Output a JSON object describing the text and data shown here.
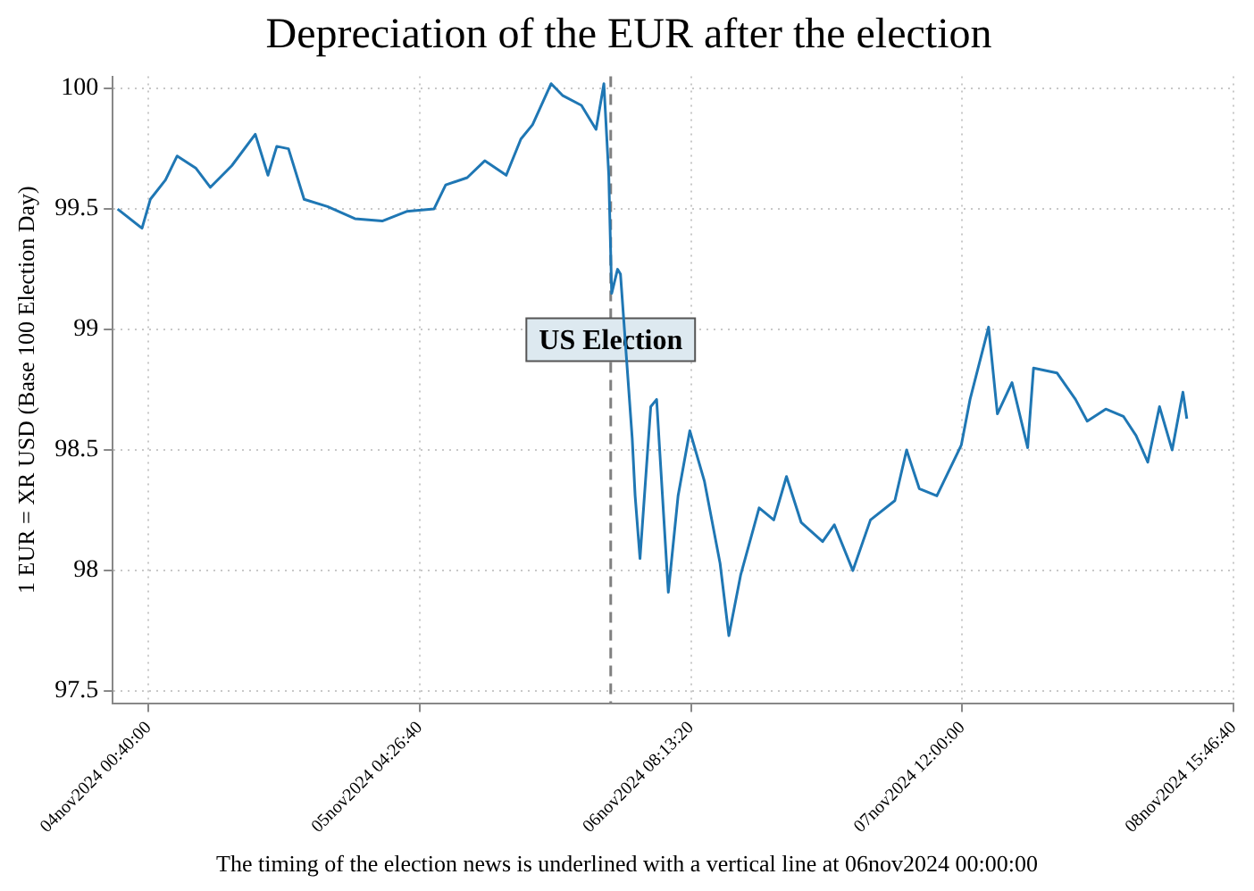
{
  "chart_data": {
    "type": "line",
    "title": "Depreciation of the EUR after the election",
    "ylabel": "1 EUR = XR USD (Base 100 Election Day)",
    "annotations": [
      "The timing of the election news is underlined with a vertical line at 06nov2024 00:00:00"
    ],
    "series": [
      {
        "color": "#1f77b4",
        "x": [
          "2024-11-03T21:30",
          "2024-11-04T00:00",
          "2024-11-04T00:51",
          "2024-11-04T02:24",
          "2024-11-04T03:36",
          "2024-11-04T05:30",
          "2024-11-04T07:00",
          "2024-11-04T09:12",
          "2024-11-04T11:36",
          "2024-11-04T12:54",
          "2024-11-04T13:48",
          "2024-11-04T15:00",
          "2024-11-04T16:36",
          "2024-11-04T19:00",
          "2024-11-04T21:48",
          "2024-11-05T00:36",
          "2024-11-05T03:06",
          "2024-11-05T05:54",
          "2024-11-05T07:06",
          "2024-11-05T09:18",
          "2024-11-05T11:06",
          "2024-11-05T13:18",
          "2024-11-05T14:48",
          "2024-11-05T16:00",
          "2024-11-05T17:54",
          "2024-11-05T19:06",
          "2024-11-05T21:00",
          "2024-11-05T22:30",
          "2024-11-05T23:18",
          "2024-11-05T23:48",
          "2024-11-06T00:06",
          "2024-11-06T00:42",
          "2024-11-06T01:00",
          "2024-11-06T01:36",
          "2024-11-06T02:12",
          "2024-11-06T02:30",
          "2024-11-06T03:00",
          "2024-11-06T04:06",
          "2024-11-06T04:42",
          "2024-11-06T05:54",
          "2024-11-06T06:54",
          "2024-11-06T08:06",
          "2024-11-06T09:36",
          "2024-11-06T11:12",
          "2024-11-06T12:06",
          "2024-11-06T13:18",
          "2024-11-06T15:12",
          "2024-11-06T16:42",
          "2024-11-06T18:00",
          "2024-11-06T19:30",
          "2024-11-06T21:42",
          "2024-11-06T22:54",
          "2024-11-07T00:48",
          "2024-11-07T02:36",
          "2024-11-07T05:06",
          "2024-11-07T06:18",
          "2024-11-07T07:36",
          "2024-11-07T09:24",
          "2024-11-07T11:54",
          "2024-11-07T12:48",
          "2024-11-07T14:42",
          "2024-11-07T15:36",
          "2024-11-07T17:06",
          "2024-11-07T18:42",
          "2024-11-07T19:18",
          "2024-11-07T21:42",
          "2024-11-07T23:36",
          "2024-11-08T00:48",
          "2024-11-08T02:42",
          "2024-11-08T04:30",
          "2024-11-08T05:48",
          "2024-11-08T07:00",
          "2024-11-08T08:12",
          "2024-11-08T09:30",
          "2024-11-08T10:36",
          "2024-11-08T11:00"
        ],
        "values": [
          99.5,
          99.42,
          99.54,
          99.62,
          99.72,
          99.67,
          99.59,
          99.68,
          99.81,
          99.64,
          99.76,
          99.75,
          99.54,
          99.51,
          99.46,
          99.45,
          99.49,
          99.5,
          99.6,
          99.63,
          99.7,
          99.64,
          99.79,
          99.85,
          100.02,
          99.97,
          99.93,
          99.83,
          100.02,
          99.64,
          99.15,
          99.25,
          99.23,
          98.89,
          98.55,
          98.31,
          98.05,
          98.68,
          98.71,
          97.91,
          98.31,
          98.58,
          98.37,
          98.03,
          97.73,
          97.98,
          98.26,
          98.21,
          98.39,
          98.2,
          98.12,
          98.19,
          98.0,
          98.21,
          98.29,
          98.5,
          98.34,
          98.31,
          98.52,
          98.71,
          99.01,
          98.65,
          98.78,
          98.51,
          98.84,
          98.82,
          98.71,
          98.62,
          98.67,
          98.64,
          98.56,
          98.45,
          98.68,
          98.5,
          98.74,
          98.63
        ]
      }
    ],
    "xlim": [
      "2024-11-03T21:00",
      "2024-11-08T15:46:40"
    ],
    "xticks": [
      {
        "value": "2024-11-04T00:40",
        "label": "04nov2024 00:40:00"
      },
      {
        "value": "2024-11-05T04:26:40",
        "label": "05nov2024 04:26:40"
      },
      {
        "value": "2024-11-06T08:13:20",
        "label": "06nov2024 08:13:20"
      },
      {
        "value": "2024-11-07T12:00",
        "label": "07nov2024 12:00:00"
      },
      {
        "value": "2024-11-08T15:46:40",
        "label": "08nov2024 15:46:40"
      }
    ],
    "ylim": [
      97.45,
      100.05
    ],
    "yticks": [
      97.5,
      98,
      98.5,
      99,
      99.5,
      100
    ],
    "ref_lines": [
      {
        "axis": "x",
        "value": "2024-11-06T00:00",
        "label": "US Election",
        "color": "#808080",
        "line_style": "dashed"
      }
    ],
    "grid": true,
    "legend": false,
    "marker": "none",
    "line_style": "solid"
  }
}
